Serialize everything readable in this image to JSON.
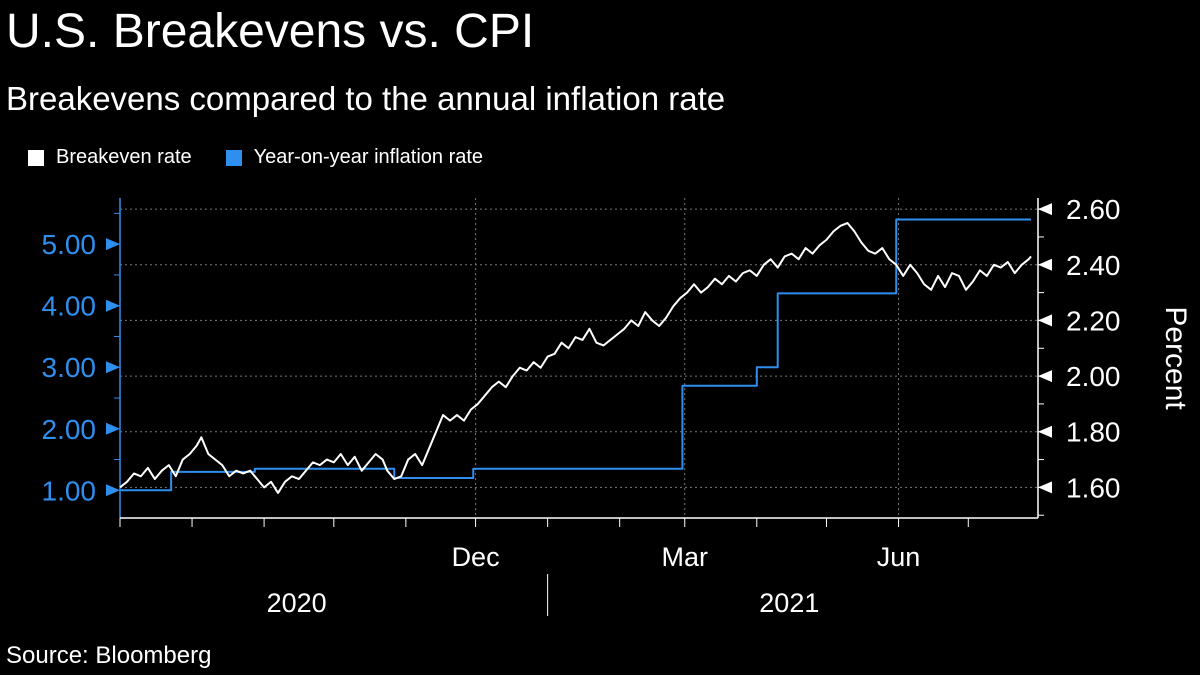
{
  "title": "U.S. Breakevens vs. CPI",
  "subtitle": "Breakevens compared to the annual inflation rate",
  "source": "Source: Bloomberg",
  "colors": {
    "breakeven": "#ffffff",
    "inflation": "#2f8fef",
    "background": "#000000",
    "grid": "#777777"
  },
  "chart_data": {
    "type": "line",
    "x_axis": {
      "start": "2020-07-01",
      "end": "2021-07-31",
      "tick_labels": [
        {
          "date": "2020-12-01",
          "label": "Dec"
        },
        {
          "date": "2021-03-01",
          "label": "Mar"
        },
        {
          "date": "2021-06-01",
          "label": "Jun"
        }
      ],
      "year_labels": [
        {
          "center": "2020-09-15",
          "label": "2020"
        },
        {
          "center": "2021-04-15",
          "label": "2021"
        }
      ],
      "year_divider": "2021-01-01"
    },
    "left_axis": {
      "ticks": [
        "1.00",
        "2.00",
        "3.00",
        "4.00",
        "5.00"
      ],
      "range": [
        0.55,
        5.75
      ]
    },
    "right_axis": {
      "label": "Percent",
      "ticks": [
        "1.60",
        "1.80",
        "2.00",
        "2.20",
        "2.40",
        "2.60"
      ],
      "range": [
        1.49,
        2.64
      ]
    },
    "legend": [
      "Breakeven rate",
      "Year-on-year inflation rate"
    ],
    "series": [
      {
        "name": "Year-on-year inflation rate",
        "axis": "left",
        "step": true,
        "points": [
          [
            "2020-07-01",
            1.0
          ],
          [
            "2020-07-23",
            1.3
          ],
          [
            "2020-08-28",
            1.35
          ],
          [
            "2020-10-27",
            1.2
          ],
          [
            "2020-11-30",
            1.35
          ],
          [
            "2021-02-28",
            2.7
          ],
          [
            "2021-04-01",
            3.0
          ],
          [
            "2021-04-10",
            4.2
          ],
          [
            "2021-05-31",
            5.4
          ],
          [
            "2021-07-28",
            5.4
          ]
        ]
      },
      {
        "name": "Breakeven rate",
        "axis": "right",
        "points": [
          [
            "2020-07-01",
            1.6
          ],
          [
            "2020-07-04",
            1.62
          ],
          [
            "2020-07-07",
            1.65
          ],
          [
            "2020-07-10",
            1.64
          ],
          [
            "2020-07-13",
            1.67
          ],
          [
            "2020-07-16",
            1.63
          ],
          [
            "2020-07-19",
            1.66
          ],
          [
            "2020-07-22",
            1.68
          ],
          [
            "2020-07-25",
            1.64
          ],
          [
            "2020-07-28",
            1.7
          ],
          [
            "2020-07-31",
            1.72
          ],
          [
            "2020-08-03",
            1.75
          ],
          [
            "2020-08-05",
            1.78
          ],
          [
            "2020-08-08",
            1.72
          ],
          [
            "2020-08-11",
            1.7
          ],
          [
            "2020-08-14",
            1.68
          ],
          [
            "2020-08-17",
            1.64
          ],
          [
            "2020-08-20",
            1.66
          ],
          [
            "2020-08-23",
            1.65
          ],
          [
            "2020-08-26",
            1.66
          ],
          [
            "2020-08-29",
            1.63
          ],
          [
            "2020-09-01",
            1.6
          ],
          [
            "2020-09-04",
            1.62
          ],
          [
            "2020-09-07",
            1.58
          ],
          [
            "2020-09-10",
            1.62
          ],
          [
            "2020-09-13",
            1.64
          ],
          [
            "2020-09-16",
            1.63
          ],
          [
            "2020-09-19",
            1.66
          ],
          [
            "2020-09-22",
            1.69
          ],
          [
            "2020-09-25",
            1.68
          ],
          [
            "2020-09-28",
            1.7
          ],
          [
            "2020-10-01",
            1.69
          ],
          [
            "2020-10-04",
            1.72
          ],
          [
            "2020-10-07",
            1.68
          ],
          [
            "2020-10-10",
            1.71
          ],
          [
            "2020-10-13",
            1.66
          ],
          [
            "2020-10-16",
            1.69
          ],
          [
            "2020-10-19",
            1.72
          ],
          [
            "2020-10-22",
            1.7
          ],
          [
            "2020-10-24",
            1.66
          ],
          [
            "2020-10-27",
            1.63
          ],
          [
            "2020-10-30",
            1.64
          ],
          [
            "2020-11-02",
            1.7
          ],
          [
            "2020-11-05",
            1.72
          ],
          [
            "2020-11-08",
            1.68
          ],
          [
            "2020-11-11",
            1.74
          ],
          [
            "2020-11-14",
            1.8
          ],
          [
            "2020-11-17",
            1.86
          ],
          [
            "2020-11-20",
            1.84
          ],
          [
            "2020-11-23",
            1.86
          ],
          [
            "2020-11-26",
            1.84
          ],
          [
            "2020-11-29",
            1.88
          ],
          [
            "2020-12-02",
            1.9
          ],
          [
            "2020-12-05",
            1.93
          ],
          [
            "2020-12-08",
            1.96
          ],
          [
            "2020-12-11",
            1.98
          ],
          [
            "2020-12-14",
            1.96
          ],
          [
            "2020-12-17",
            2.0
          ],
          [
            "2020-12-20",
            2.03
          ],
          [
            "2020-12-23",
            2.02
          ],
          [
            "2020-12-26",
            2.05
          ],
          [
            "2020-12-29",
            2.03
          ],
          [
            "2021-01-01",
            2.07
          ],
          [
            "2021-01-04",
            2.08
          ],
          [
            "2021-01-07",
            2.12
          ],
          [
            "2021-01-10",
            2.1
          ],
          [
            "2021-01-13",
            2.14
          ],
          [
            "2021-01-16",
            2.13
          ],
          [
            "2021-01-19",
            2.17
          ],
          [
            "2021-01-22",
            2.12
          ],
          [
            "2021-01-25",
            2.11
          ],
          [
            "2021-01-28",
            2.13
          ],
          [
            "2021-01-31",
            2.15
          ],
          [
            "2021-02-03",
            2.17
          ],
          [
            "2021-02-06",
            2.2
          ],
          [
            "2021-02-09",
            2.18
          ],
          [
            "2021-02-12",
            2.23
          ],
          [
            "2021-02-15",
            2.2
          ],
          [
            "2021-02-18",
            2.18
          ],
          [
            "2021-02-21",
            2.21
          ],
          [
            "2021-02-24",
            2.25
          ],
          [
            "2021-02-27",
            2.28
          ],
          [
            "2021-03-02",
            2.3
          ],
          [
            "2021-03-05",
            2.33
          ],
          [
            "2021-03-08",
            2.3
          ],
          [
            "2021-03-11",
            2.32
          ],
          [
            "2021-03-14",
            2.35
          ],
          [
            "2021-03-17",
            2.33
          ],
          [
            "2021-03-20",
            2.36
          ],
          [
            "2021-03-23",
            2.34
          ],
          [
            "2021-03-26",
            2.37
          ],
          [
            "2021-03-29",
            2.38
          ],
          [
            "2021-04-01",
            2.36
          ],
          [
            "2021-04-04",
            2.4
          ],
          [
            "2021-04-07",
            2.42
          ],
          [
            "2021-04-10",
            2.39
          ],
          [
            "2021-04-13",
            2.43
          ],
          [
            "2021-04-16",
            2.44
          ],
          [
            "2021-04-19",
            2.42
          ],
          [
            "2021-04-22",
            2.46
          ],
          [
            "2021-04-25",
            2.44
          ],
          [
            "2021-04-28",
            2.47
          ],
          [
            "2021-05-01",
            2.49
          ],
          [
            "2021-05-04",
            2.52
          ],
          [
            "2021-05-07",
            2.54
          ],
          [
            "2021-05-10",
            2.55
          ],
          [
            "2021-05-13",
            2.52
          ],
          [
            "2021-05-16",
            2.48
          ],
          [
            "2021-05-19",
            2.45
          ],
          [
            "2021-05-22",
            2.44
          ],
          [
            "2021-05-25",
            2.46
          ],
          [
            "2021-05-28",
            2.42
          ],
          [
            "2021-05-31",
            2.4
          ],
          [
            "2021-06-03",
            2.36
          ],
          [
            "2021-06-06",
            2.4
          ],
          [
            "2021-06-09",
            2.37
          ],
          [
            "2021-06-12",
            2.33
          ],
          [
            "2021-06-15",
            2.31
          ],
          [
            "2021-06-18",
            2.36
          ],
          [
            "2021-06-21",
            2.32
          ],
          [
            "2021-06-24",
            2.37
          ],
          [
            "2021-06-27",
            2.36
          ],
          [
            "2021-06-30",
            2.31
          ],
          [
            "2021-07-03",
            2.34
          ],
          [
            "2021-07-06",
            2.38
          ],
          [
            "2021-07-09",
            2.36
          ],
          [
            "2021-07-12",
            2.4
          ],
          [
            "2021-07-15",
            2.39
          ],
          [
            "2021-07-18",
            2.41
          ],
          [
            "2021-07-21",
            2.37
          ],
          [
            "2021-07-24",
            2.4
          ],
          [
            "2021-07-27",
            2.42
          ],
          [
            "2021-07-28",
            2.43
          ]
        ]
      }
    ]
  }
}
